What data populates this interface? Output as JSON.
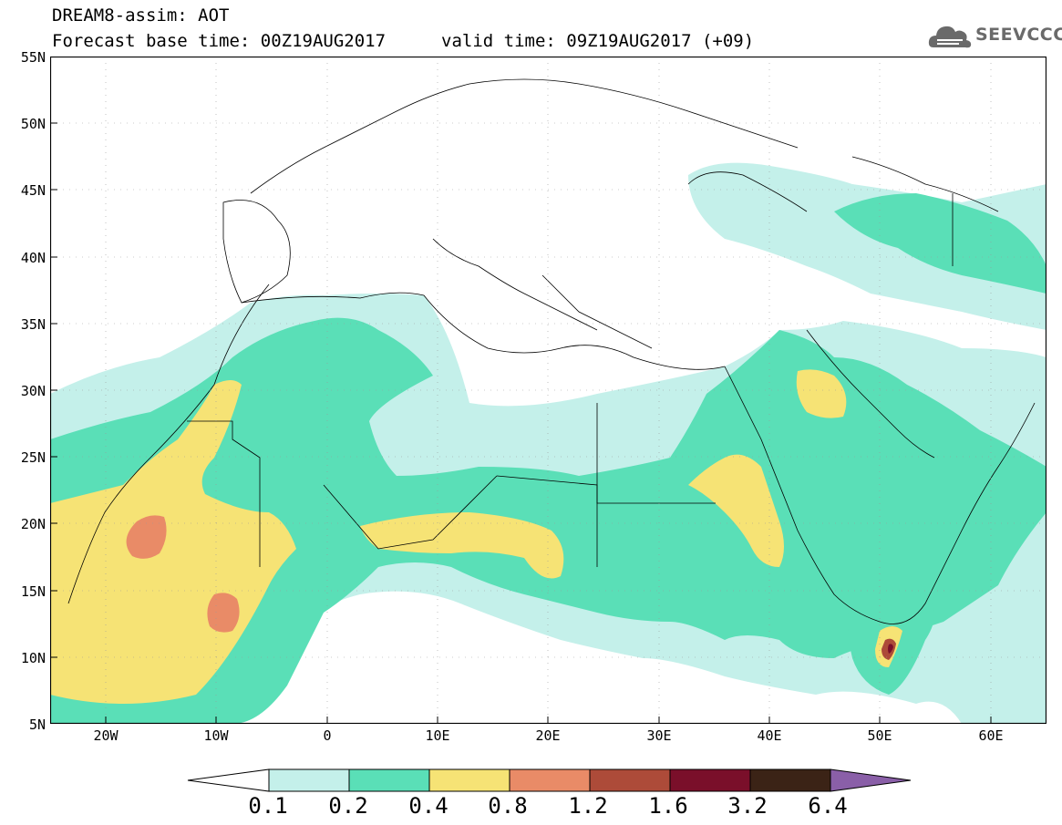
{
  "header": {
    "model_line": "DREAM8-assim: AOT",
    "base_time_label": "Forecast base time: 00Z19AUG2017",
    "valid_time_label": "valid time: 09Z19AUG2017 (+09)"
  },
  "logo": {
    "text": "SEEVCCC",
    "icon": "cloud-logo-icon"
  },
  "map": {
    "lat_ticks": [
      "55N",
      "50N",
      "45N",
      "40N",
      "35N",
      "30N",
      "25N",
      "20N",
      "15N",
      "10N",
      "5N"
    ],
    "lon_ticks": [
      "20W",
      "10W",
      "0",
      "10E",
      "20E",
      "30E",
      "40E",
      "50E",
      "60E"
    ],
    "extent": {
      "lon_min": -25,
      "lon_max": 65,
      "lat_min": 5,
      "lat_max": 55
    }
  },
  "legend": {
    "thresholds": [
      "0.1",
      "0.2",
      "0.4",
      "0.8",
      "1.2",
      "1.6",
      "3.2",
      "6.4"
    ],
    "colors": [
      "#ffffff",
      "#c4f0ea",
      "#5adfb7",
      "#f6e375",
      "#e98b67",
      "#ad4b39",
      "#7a0f2a",
      "#3b2316",
      "#8a5fa8"
    ]
  }
}
